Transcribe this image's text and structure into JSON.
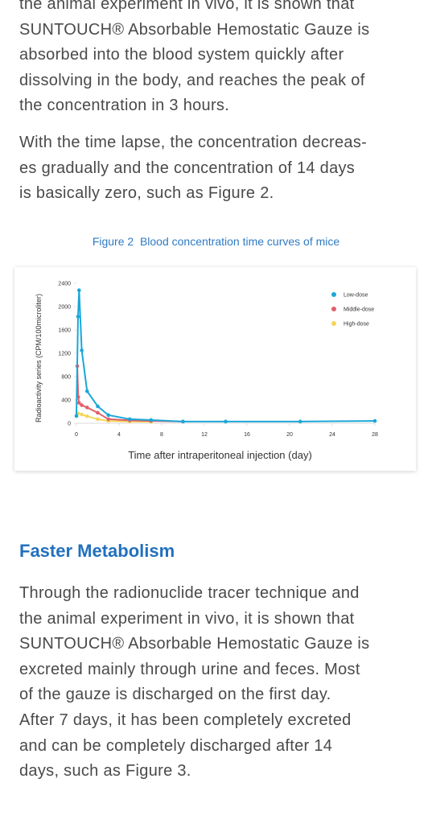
{
  "paragraph_1": [
    "the animal experiment in vivo, it is shown that",
    "SUNTOUCH® Absorbable Hemostatic Gauze is",
    "absorbed into the blood system quickly after",
    "dissolving in the body, and reaches the peak of",
    "the concentration in 3 hours."
  ],
  "paragraph_2": [
    "With the time lapse, the concentration decreas-",
    "es gradually and the concentration of 14 days",
    "is basically zero, such as Figure 2."
  ],
  "figure_caption": "Figure 2  Blood concentration time curves of mice",
  "chart_data": {
    "type": "line",
    "xlabel": "Time after intraperitoneal injection (day)",
    "ylabel": "Radioactivity series (CPM/100microliter)",
    "xlim": [
      0,
      28
    ],
    "xticks": [
      0,
      4,
      8,
      12,
      16,
      20,
      24,
      28
    ],
    "ylim": [
      0,
      2400
    ],
    "yticks": [
      0,
      400,
      800,
      1200,
      1600,
      2000,
      2400
    ],
    "legend": "top-right",
    "series": [
      {
        "name": "Low-dose",
        "color": "#1aa7d8",
        "x": [
          0,
          0.15,
          0.25,
          0.5,
          1,
          2,
          3,
          5,
          7,
          10,
          14,
          21,
          28
        ],
        "values": [
          125,
          1830,
          2280,
          1250,
          550,
          290,
          140,
          70,
          55,
          30,
          30,
          30,
          40
        ]
      },
      {
        "name": "Middle-dose",
        "color": "#e0606a",
        "x": [
          0.08,
          0.17,
          0.25,
          0.5,
          1,
          2,
          3,
          5,
          7,
          10
        ],
        "values": [
          980,
          450,
          350,
          310,
          270,
          180,
          70,
          50,
          40,
          30
        ]
      },
      {
        "name": "High-dose",
        "color": "#f5d55a",
        "x": [
          0.15,
          0.5,
          1,
          2,
          3,
          5,
          7
        ],
        "values": [
          170,
          150,
          120,
          70,
          40,
          30,
          25
        ]
      }
    ]
  },
  "section_heading": "Faster Metabolism",
  "paragraph_3": [
    "Through the radionuclide tracer technique and",
    "the animal experiment in vivo, it is shown that",
    "SUNTOUCH® Absorbable Hemostatic Gauze is",
    "excreted mainly through urine and feces. Most",
    "of the gauze is discharged on the first day.",
    "After 7 days, it has been completely excreted",
    "and can be completely discharged after 14",
    "days, such as Figure 3."
  ]
}
